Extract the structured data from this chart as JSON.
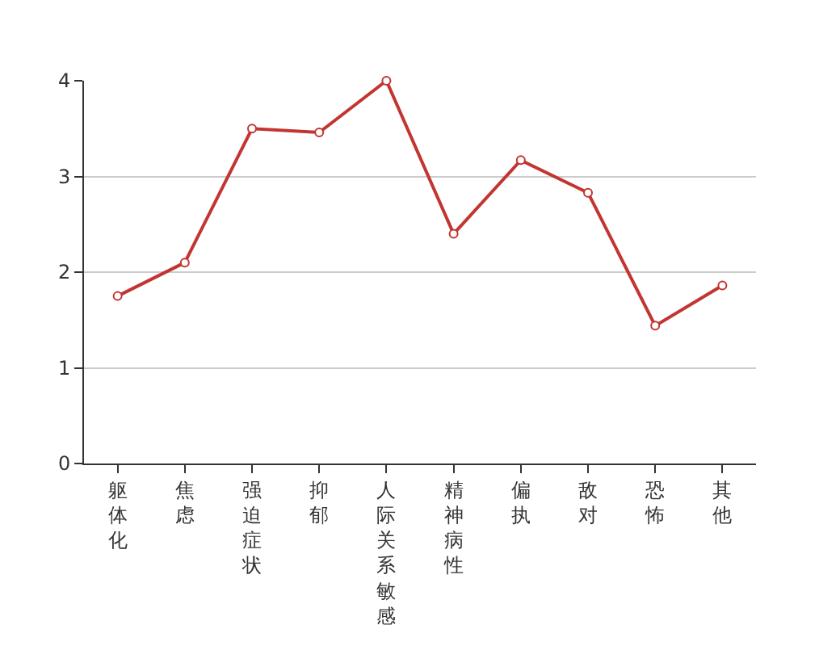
{
  "chart_data": {
    "type": "line",
    "categories": [
      "躯体化",
      "焦虑",
      "强迫症状",
      "抑郁",
      "人际关系敏感",
      "精神病性",
      "偏执",
      "敌对",
      "恐怖",
      "其他"
    ],
    "series": [
      {
        "color": "#c23531",
        "values": [
          1.75,
          2.1,
          3.5,
          3.46,
          4.0,
          2.4,
          3.17,
          2.83,
          1.44,
          1.86
        ]
      }
    ],
    "ylim": [
      0,
      4
    ],
    "yticks": [
      0,
      1,
      2,
      3,
      4
    ],
    "grid": "y",
    "legend": false,
    "marker": "circle",
    "line_style": "solid"
  }
}
